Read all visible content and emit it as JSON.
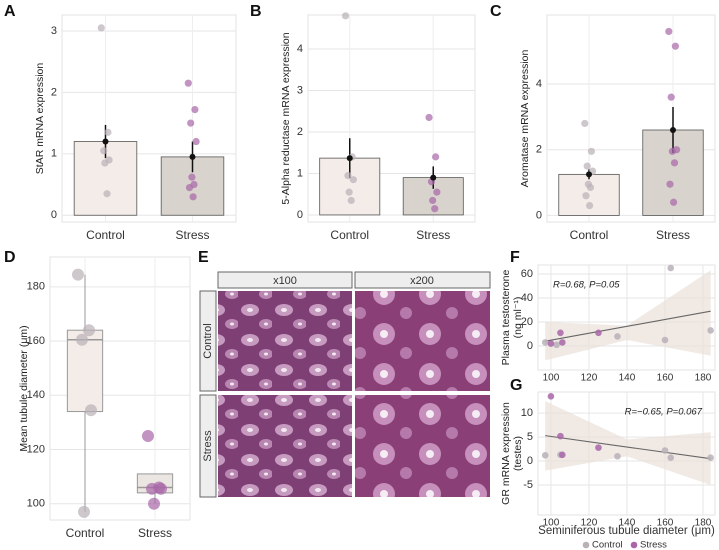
{
  "chart_data": [
    {
      "type": "bar",
      "label": "A",
      "ylabel": [
        "StAR mRNA expression"
      ],
      "categories": [
        "Control",
        "Stress"
      ],
      "colors": [
        "#f4ece8",
        "#d9d3cd"
      ],
      "point_colors": [
        "#b9b0b8",
        "#a866a8"
      ],
      "values": [
        1.2,
        0.95
      ],
      "errors": [
        0.27,
        0.25
      ],
      "points": [
        [
          3.05,
          1.35,
          1.05,
          0.9,
          0.85,
          0.35
        ],
        [
          2.15,
          1.72,
          1.5,
          1.2,
          0.62,
          0.5,
          0.45,
          0.3
        ]
      ],
      "ylim": [
        -0.11,
        3.26
      ],
      "yticks": [
        0,
        1,
        2,
        3
      ],
      "grid": true
    },
    {
      "type": "bar",
      "label": "B",
      "ylabel": [
        "5-Alpha reductase mRNA expression"
      ],
      "categories": [
        "Control",
        "Stress"
      ],
      "colors": [
        "#f4ece8",
        "#d9d3cd"
      ],
      "point_colors": [
        "#b9b0b8",
        "#a866a8"
      ],
      "values": [
        1.37,
        0.9
      ],
      "errors": [
        0.48,
        0.27
      ],
      "points": [
        [
          4.8,
          1.4,
          0.95,
          0.85,
          0.55,
          0.35
        ],
        [
          2.35,
          1.4,
          0.8,
          0.55,
          0.35,
          0.15
        ]
      ],
      "ylim": [
        -0.17,
        4.82
      ],
      "yticks": [
        0,
        1,
        2,
        3,
        4
      ],
      "grid": true
    },
    {
      "type": "bar",
      "label": "C",
      "ylabel": [
        "Aromatase mRNA expression"
      ],
      "categories": [
        "Control",
        "Stress"
      ],
      "colors": [
        "#f4ece8",
        "#d9d3cd"
      ],
      "point_colors": [
        "#b9b0b8",
        "#a866a8"
      ],
      "values": [
        1.25,
        2.6
      ],
      "errors": [
        0.15,
        0.7
      ],
      "points": [
        [
          2.8,
          1.95,
          1.5,
          1.35,
          0.95,
          0.85,
          0.6,
          0.3
        ],
        [
          5.6,
          5.15,
          3.6,
          2.0,
          1.95,
          1.6,
          0.95,
          0.4
        ]
      ],
      "ylim": [
        -0.2,
        6.1
      ],
      "yticks": [
        0,
        2,
        4
      ],
      "grid": true
    },
    {
      "type": "box",
      "label": "D",
      "ylabel": [
        "Mean tubule diameter (μm)"
      ],
      "categories": [
        "Control",
        "Stress"
      ],
      "colors": [
        "#f4ece8",
        "#ece6e2"
      ],
      "point_colors": [
        "#b9b0b8",
        "#a866a8"
      ],
      "stats": [
        {
          "low": 97,
          "q1": 134,
          "median": 160.5,
          "q3": 164,
          "high": 184.5
        },
        {
          "low": 100,
          "q1": 104,
          "median": 106,
          "q3": 111,
          "high": 111
        }
      ],
      "points": [
        [
          184.5,
          164,
          160.5,
          134.5,
          97
        ],
        [
          125,
          106,
          105.5,
          105.5,
          100
        ]
      ],
      "ylim": [
        94,
        191
      ],
      "yticks": [
        100,
        120,
        140,
        160,
        180
      ],
      "grid": true
    },
    {
      "type": "scatter",
      "label": "F",
      "ylabel": [
        "Plasma testosterone",
        "(ng ml⁻¹)"
      ],
      "annotation": "R=0.68, P=0.05",
      "series": [
        {
          "name": "Control",
          "color": "#b9b0b8",
          "x": [
            97,
            103,
            135,
            160,
            163,
            184
          ],
          "y": [
            3,
            1,
            8,
            5,
            65,
            13
          ]
        },
        {
          "name": "Stress",
          "color": "#a866a8",
          "x": [
            100,
            105,
            106,
            125
          ],
          "y": [
            2,
            11,
            3,
            11
          ]
        }
      ],
      "fit": {
        "x": [
          97,
          184
        ],
        "y": [
          4,
          29
        ]
      },
      "band": {
        "x": [
          97,
          140,
          184
        ],
        "lower": [
          -12,
          5,
          -8
        ],
        "upper": [
          20,
          17,
          63
        ]
      },
      "xlim": [
        93.2,
        186.3
      ],
      "xticks": [
        100,
        120,
        140,
        160,
        180
      ],
      "ylim": [
        -20,
        67.5
      ],
      "yticks": [
        0,
        20,
        40,
        60
      ],
      "grid": true
    },
    {
      "type": "scatter",
      "label": "G",
      "ylabel": [
        "GR mRNA expression",
        "(testes)"
      ],
      "annotation": "R=−0.65, P=0.067",
      "xlabel": "Seminiferous tubule diameter (μm)",
      "legend": "bottom",
      "series": [
        {
          "name": "Control",
          "color": "#b9b0b8",
          "x": [
            97,
            105,
            135,
            160,
            163,
            184
          ],
          "y": [
            1.2,
            1.3,
            1,
            2.2,
            0.7,
            0.7
          ]
        },
        {
          "name": "Stress",
          "color": "#a866a8",
          "x": [
            100,
            105,
            106,
            125
          ],
          "y": [
            13.5,
            5.2,
            1.3,
            2.8
          ]
        }
      ],
      "fit": {
        "x": [
          97,
          184
        ],
        "y": [
          5.3,
          0.5
        ]
      },
      "band": {
        "x": [
          97,
          140,
          184
        ],
        "lower": [
          -2,
          1,
          -5
        ],
        "upper": [
          12.5,
          4.5,
          6
        ]
      },
      "xlim": [
        93.2,
        186.3
      ],
      "xticks": [
        100,
        120,
        140,
        160,
        180
      ],
      "ylim": [
        -11.25,
        14.4
      ],
      "yticks": [
        -5,
        0,
        5,
        10
      ],
      "grid": true
    }
  ],
  "panel_e": {
    "label": "E",
    "columns": [
      "x100",
      "x200"
    ],
    "rows": [
      "Control",
      "Stress"
    ]
  }
}
